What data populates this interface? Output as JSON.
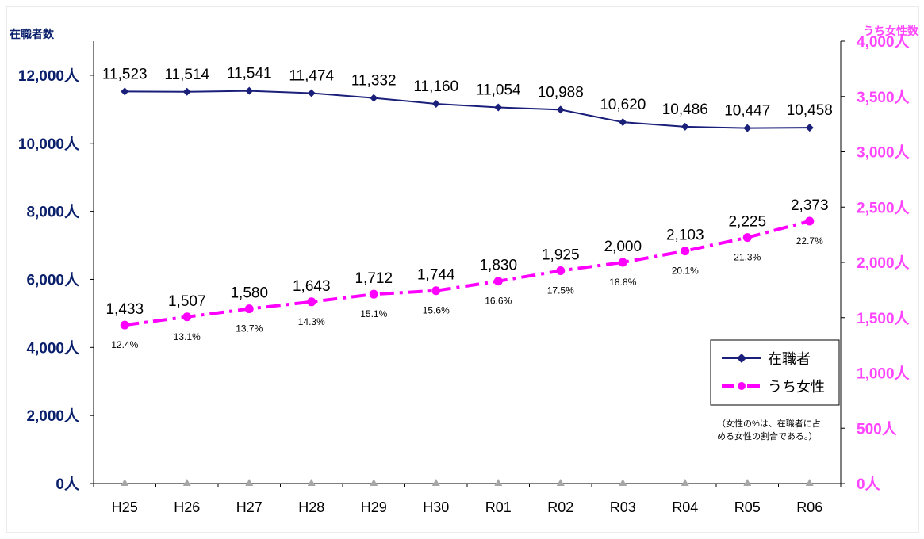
{
  "chart_data": {
    "type": "line",
    "categories": [
      "H25",
      "H26",
      "H27",
      "H28",
      "H29",
      "H30",
      "R01",
      "R02",
      "R03",
      "R04",
      "R05",
      "R06"
    ],
    "left_axis": {
      "title": "在職者数",
      "ticks": [
        "0人",
        "2,000人",
        "4,000人",
        "6,000人",
        "8,000人",
        "10,000人",
        "12,000人"
      ],
      "tick_values": [
        0,
        2000,
        4000,
        6000,
        8000,
        10000,
        12000
      ],
      "ylim": [
        0,
        13000
      ],
      "color": "#0a1f6b"
    },
    "right_axis": {
      "title": "うち女性数",
      "ticks": [
        "0人",
        "500人",
        "1,000人",
        "1,500人",
        "2,000人",
        "2,500人",
        "3,000人",
        "3,500人",
        "4,000人"
      ],
      "tick_values": [
        0,
        500,
        1000,
        1500,
        2000,
        2500,
        3000,
        3500,
        4000
      ],
      "ylim": [
        0,
        4000
      ],
      "color": "#ff44ff"
    },
    "series": [
      {
        "name": "在職者",
        "axis": "left",
        "color": "#1a1f7a",
        "values": [
          11523,
          11514,
          11541,
          11474,
          11332,
          11160,
          11054,
          10988,
          10620,
          10486,
          10447,
          10458
        ],
        "labels": [
          "11,523",
          "11,514",
          "11,541",
          "11,474",
          "11,332",
          "11,160",
          "11,054",
          "10,988",
          "10,620",
          "10,486",
          "10,447",
          "10,458"
        ]
      },
      {
        "name": "うち女性",
        "axis": "right",
        "color": "#ff00ff",
        "values": [
          1433,
          1507,
          1580,
          1643,
          1712,
          1744,
          1830,
          1925,
          2000,
          2103,
          2225,
          2373
        ],
        "labels": [
          "1,433",
          "1,507",
          "1,580",
          "1,643",
          "1,712",
          "1,744",
          "1,830",
          "1,925",
          "2,000",
          "2,103",
          "2,225",
          "2,373"
        ],
        "percent_labels": [
          "12.4%",
          "13.1%",
          "13.7%",
          "14.3%",
          "15.1%",
          "15.6%",
          "16.6%",
          "17.5%",
          "18.8%",
          "20.1%",
          "21.3%",
          "22.7%"
        ]
      }
    ],
    "baseline_marker_color": "#a6a6a6",
    "legend_placement": "right",
    "note_lines": [
      "（女性の%は、在職者に占",
      "める女性の割合である。）"
    ],
    "grid": false
  }
}
